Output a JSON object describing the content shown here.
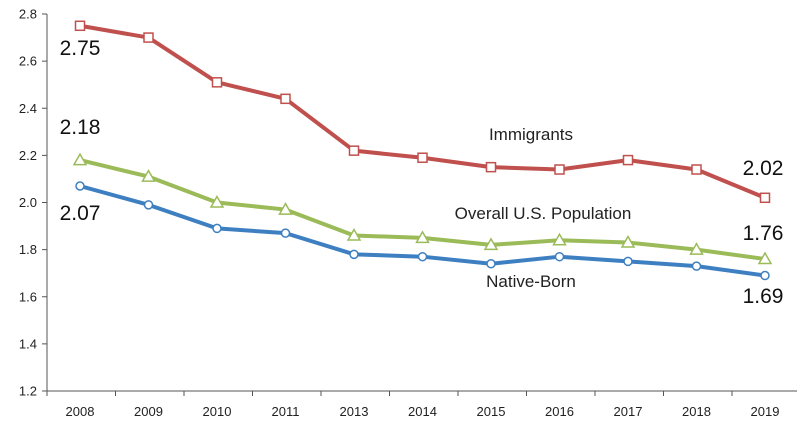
{
  "chart_data": {
    "type": "line",
    "x": [
      "2008",
      "2009",
      "2010",
      "2011",
      "2013",
      "2014",
      "2015",
      "2016",
      "2017",
      "2018",
      "2019"
    ],
    "ylim": [
      1.2,
      2.8
    ],
    "yticks": [
      "1.2",
      "1.4",
      "1.6",
      "1.8",
      "2.0",
      "2.2",
      "2.4",
      "2.6",
      "2.8"
    ],
    "grid": false,
    "legend": "none",
    "series": [
      {
        "name": "Immigrants",
        "color": "#c0504d",
        "marker": "square",
        "values": [
          2.75,
          2.7,
          2.51,
          2.44,
          2.22,
          2.19,
          2.15,
          2.14,
          2.18,
          2.14,
          2.02
        ],
        "labels": {
          "first": "2.75",
          "last": "2.02"
        }
      },
      {
        "name": "Overall U.S. Population",
        "color": "#9bbb59",
        "marker": "triangle",
        "values": [
          2.18,
          2.11,
          2.0,
          1.97,
          1.86,
          1.85,
          1.82,
          1.84,
          1.83,
          1.8,
          1.76
        ],
        "labels": {
          "first": "2.18",
          "last": "1.76"
        }
      },
      {
        "name": "Native-Born",
        "color": "#3d7fc1",
        "marker": "circle",
        "values": [
          2.07,
          1.99,
          1.89,
          1.87,
          1.78,
          1.77,
          1.74,
          1.77,
          1.75,
          1.73,
          1.69
        ],
        "labels": {
          "first": "2.07",
          "last": "1.69"
        }
      }
    ]
  }
}
